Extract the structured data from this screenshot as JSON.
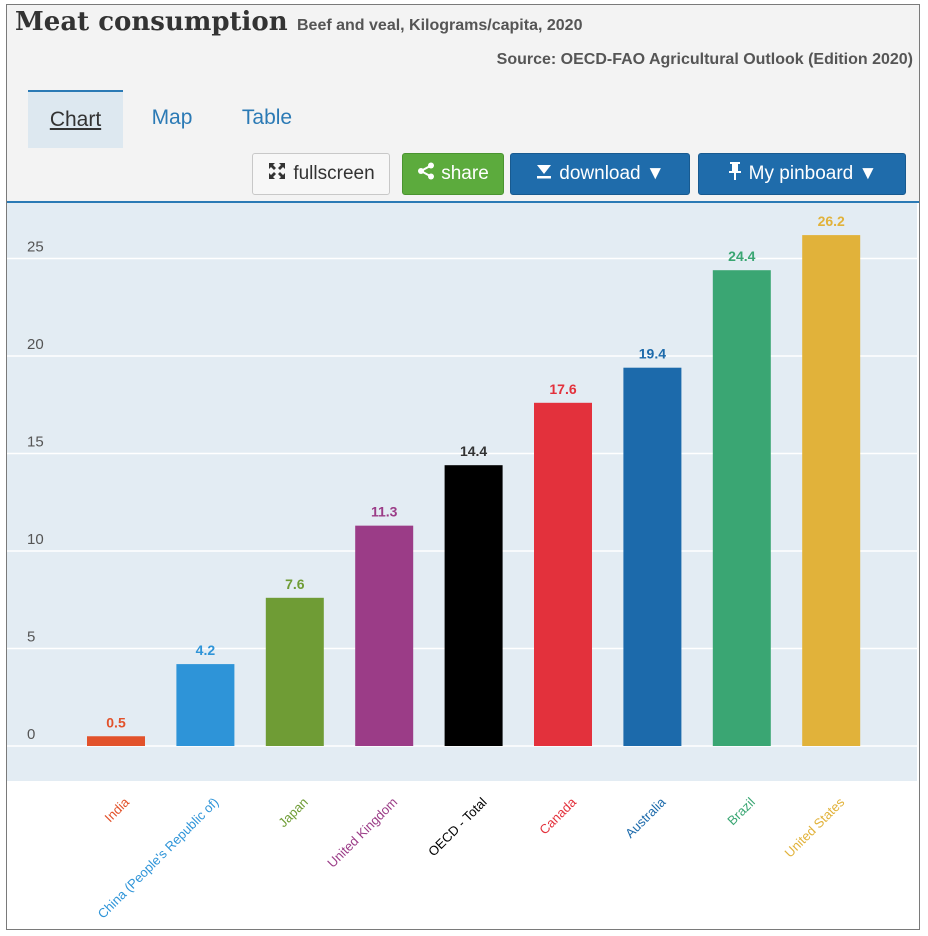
{
  "header": {
    "title": "Meat consumption",
    "subtitle": "Beef and veal, Kilograms/capita, 2020",
    "source": "Source: OECD-FAO Agricultural Outlook (Edition 2020)"
  },
  "tabs": [
    {
      "label": "Chart",
      "active": true
    },
    {
      "label": "Map",
      "active": false
    },
    {
      "label": "Table",
      "active": false
    }
  ],
  "toolbar": {
    "fullscreen_label": "fullscreen",
    "share_label": "share",
    "download_label": "download ▼",
    "pinboard_label": "My pinboard ▼"
  },
  "chart_data": {
    "type": "bar",
    "title": "Meat consumption",
    "subtitle": "Beef and veal, Kilograms/capita, 2020",
    "xlabel": "",
    "ylabel": "",
    "ylim": [
      0,
      28
    ],
    "yticks": [
      0,
      5,
      10,
      15,
      20,
      25
    ],
    "categories": [
      "India",
      "China (People's Republic of)",
      "Japan",
      "United Kingdom",
      "OECD - Total",
      "Canada",
      "Australia",
      "Brazil",
      "United States"
    ],
    "values": [
      0.5,
      4.2,
      7.6,
      11.3,
      14.4,
      17.6,
      19.4,
      24.4,
      26.2
    ],
    "value_labels": [
      "0.5",
      "4.2",
      "7.6",
      "11.3",
      "14.4",
      "17.6",
      "19.4",
      "24.4",
      "26.2"
    ],
    "colors": [
      "#e2522b",
      "#2e94d8",
      "#6f9c35",
      "#9b3c87",
      "#000000",
      "#e3313c",
      "#1c6aab",
      "#3aa673",
      "#e1b23a"
    ],
    "grid": true
  }
}
